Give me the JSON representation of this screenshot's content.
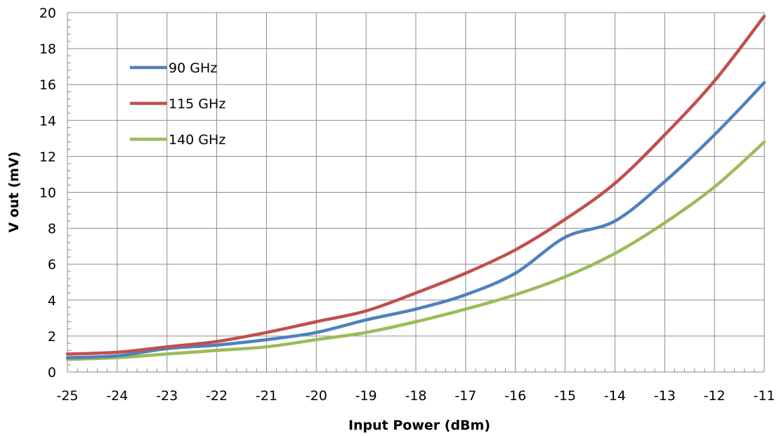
{
  "chart_data": {
    "type": "line",
    "title": "",
    "xlabel": "Input Power (dBm)",
    "ylabel": "V out (mV)",
    "xlim": [
      -25,
      -11
    ],
    "ylim": [
      0,
      20
    ],
    "x_ticks": [
      -25,
      -24,
      -23,
      -22,
      -21,
      -20,
      -19,
      -18,
      -17,
      -16,
      -15,
      -14,
      -13,
      -12,
      -11
    ],
    "y_ticks": [
      0,
      2,
      4,
      6,
      8,
      10,
      12,
      14,
      16,
      18,
      20
    ],
    "grid": true,
    "legend_position": "top-left",
    "series": [
      {
        "name": "90 GHz",
        "color": "#4F81BD",
        "x": [
          -25,
          -24,
          -23,
          -22,
          -21,
          -20,
          -19,
          -18,
          -17,
          -16,
          -15,
          -14,
          -13,
          -12,
          -11
        ],
        "y": [
          0.8,
          0.9,
          1.3,
          1.5,
          1.8,
          2.2,
          2.9,
          3.5,
          4.3,
          5.5,
          7.5,
          8.4,
          10.6,
          13.2,
          16.1
        ]
      },
      {
        "name": "115 GHz",
        "color": "#C0504D",
        "x": [
          -25,
          -24,
          -23,
          -22,
          -21,
          -20,
          -19,
          -18,
          -17,
          -16,
          -15,
          -14,
          -13,
          -12,
          -11
        ],
        "y": [
          1.0,
          1.1,
          1.4,
          1.7,
          2.2,
          2.8,
          3.4,
          4.4,
          5.5,
          6.8,
          8.5,
          10.5,
          13.2,
          16.2,
          19.8
        ]
      },
      {
        "name": "140 GHz",
        "color": "#9BBB59",
        "x": [
          -25,
          -24,
          -23,
          -22,
          -21,
          -20,
          -19,
          -18,
          -17,
          -16,
          -15,
          -14,
          -13,
          -12,
          -11
        ],
        "y": [
          0.7,
          0.8,
          1.0,
          1.2,
          1.4,
          1.8,
          2.2,
          2.8,
          3.5,
          4.3,
          5.3,
          6.6,
          8.3,
          10.3,
          12.8
        ]
      }
    ]
  }
}
